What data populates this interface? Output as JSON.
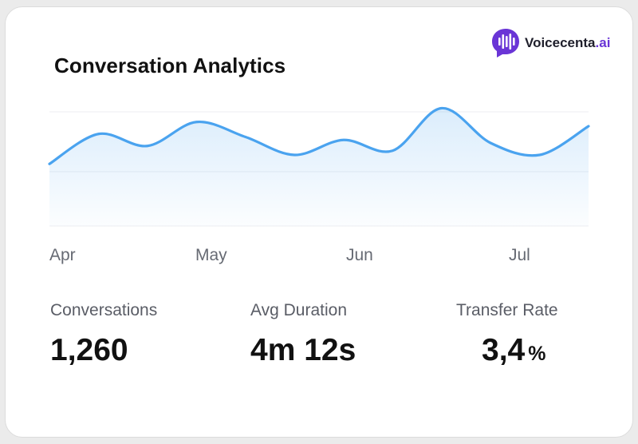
{
  "brand": {
    "name": "Voicecenta",
    "tld": ".ai",
    "logo_icon": "soundwave-bubble-icon",
    "logo_color": "#6a35d6"
  },
  "card": {
    "title": "Conversation Analytics"
  },
  "chart_data": {
    "type": "area",
    "x_ticks": [
      "Apr",
      "May",
      "Jun",
      "Jul"
    ],
    "values": [
      0.05,
      0.55,
      0.35,
      0.75,
      0.5,
      0.2,
      0.45,
      0.27,
      0.98,
      0.4,
      0.2,
      0.68
    ],
    "ylim": [
      0,
      1
    ],
    "grid": true,
    "line_color": "#4aa3ef"
  },
  "stats": [
    {
      "label": "Conversations",
      "value": "1,260",
      "unit": ""
    },
    {
      "label": "Avg Duration",
      "value": "4m 12s",
      "unit": ""
    },
    {
      "label": "Transfer Rate",
      "value": "3,4",
      "unit": "%"
    }
  ]
}
